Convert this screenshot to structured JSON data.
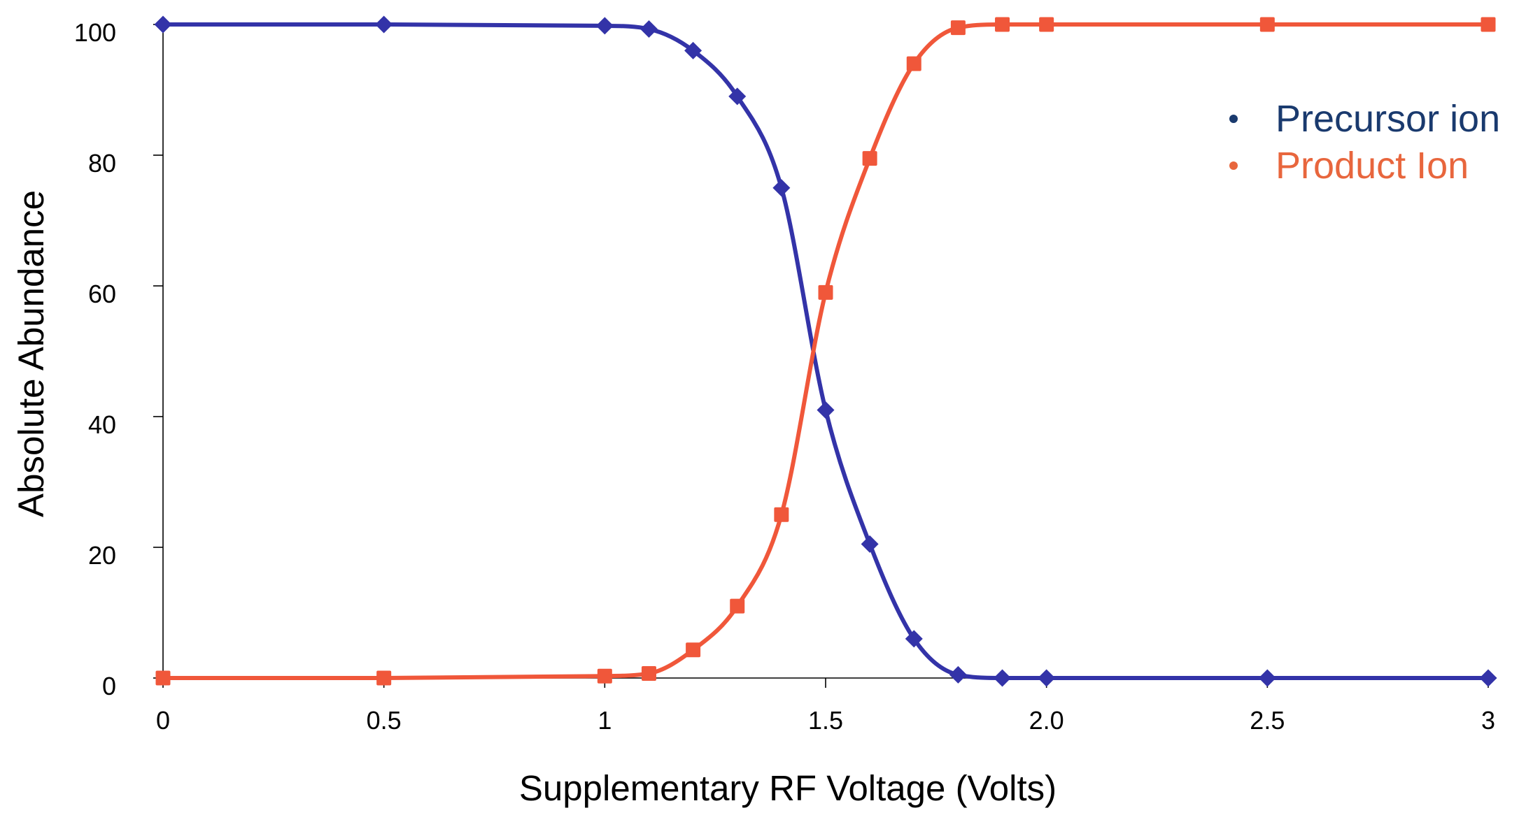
{
  "chart_data": {
    "type": "line",
    "title": "",
    "xlabel": "Supplementary RF Voltage (Volts)",
    "ylabel": "Absolute Abundance",
    "xlim": [
      0,
      3
    ],
    "ylim": [
      0,
      100
    ],
    "x_ticks": [
      0,
      0.5,
      1,
      1.5,
      2,
      2.5,
      3
    ],
    "x_tick_labels": [
      "0",
      "0.5",
      "1",
      "1.5",
      "2.0",
      "2.5",
      "3"
    ],
    "y_ticks": [
      0,
      20,
      40,
      60,
      80,
      100
    ],
    "y_tick_labels": [
      "0",
      "20",
      "40",
      "60",
      "80",
      "100"
    ],
    "grid": false,
    "legend_position": "top-right",
    "series": [
      {
        "name": "Precursor ion",
        "color": "#3333a8",
        "legend_color": "#1a3a6e",
        "marker": "diamond",
        "points": [
          [
            0,
            100
          ],
          [
            0.5,
            100
          ],
          [
            1,
            99.8
          ],
          [
            1.1,
            99.3
          ],
          [
            1.2,
            96
          ],
          [
            1.3,
            89
          ],
          [
            1.4,
            75
          ],
          [
            1.5,
            41
          ],
          [
            1.6,
            20.5
          ],
          [
            1.7,
            6
          ],
          [
            1.8,
            0.5
          ],
          [
            1.9,
            0
          ],
          [
            2.0,
            0
          ],
          [
            2.5,
            0
          ],
          [
            3,
            0
          ]
        ]
      },
      {
        "name": "Product Ion",
        "color": "#f0573a",
        "legend_color": "#e8663d",
        "marker": "square",
        "points": [
          [
            0,
            0
          ],
          [
            0.5,
            0
          ],
          [
            1,
            0.3
          ],
          [
            1.1,
            0.7
          ],
          [
            1.2,
            4.3
          ],
          [
            1.3,
            11
          ],
          [
            1.4,
            25
          ],
          [
            1.5,
            59
          ],
          [
            1.6,
            79.5
          ],
          [
            1.7,
            94
          ],
          [
            1.8,
            99.5
          ],
          [
            1.9,
            100
          ],
          [
            2.0,
            100
          ],
          [
            2.5,
            100
          ],
          [
            3,
            100
          ]
        ]
      }
    ]
  }
}
